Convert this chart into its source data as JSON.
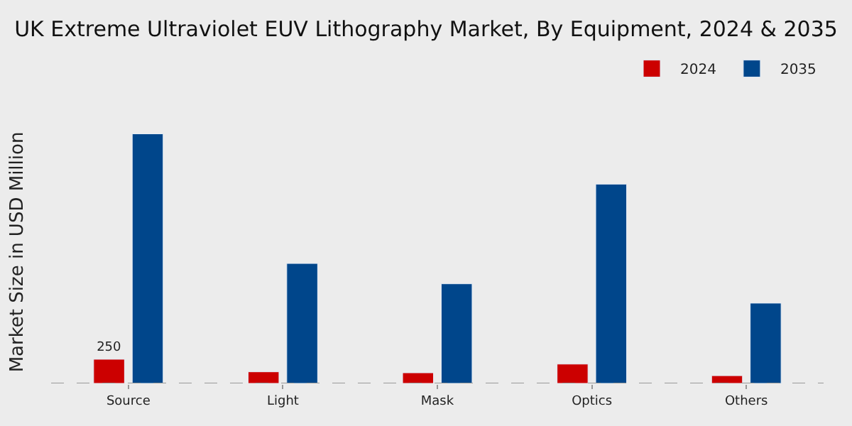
{
  "chart_data": {
    "type": "bar",
    "title": "UK Extreme Ultraviolet EUV Lithography Market, By Equipment, 2024 & 2035",
    "ylabel": "Market Size in USD Million",
    "tick_labels": "x",
    "categories": [
      "Source",
      "Light",
      "Mask",
      "Optics",
      "Others"
    ],
    "series": [
      {
        "name": "2024",
        "color": "#cc0000",
        "values": [
          250,
          120,
          110,
          200,
          80
        ],
        "value_labels": [
          "250",
          null,
          null,
          null,
          null
        ]
      },
      {
        "name": "2035",
        "color": "#00468b",
        "values": [
          2580,
          1240,
          1030,
          2060,
          830
        ]
      }
    ],
    "legend": "top right",
    "grid": false
  }
}
